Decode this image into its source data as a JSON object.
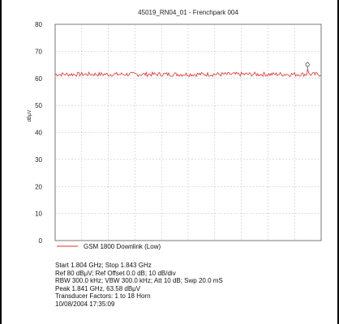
{
  "chart_data": {
    "type": "line",
    "title": "45019_RN04_01 - Frenchpark 004",
    "ylabel": "dBμV",
    "ylim": [
      0,
      80
    ],
    "yticks": [
      0,
      10,
      20,
      30,
      40,
      50,
      60,
      70,
      80
    ],
    "grid": true,
    "legend_position": "bottom",
    "series": [
      {
        "name": "GSM 1800 Downlink (Low)",
        "color": "#e03030",
        "x_start_ghz": 1.804,
        "x_stop_ghz": 1.843,
        "level_dbuv": 61.5,
        "peak": {
          "x_ghz": 1.841,
          "value": 63.58
        }
      }
    ]
  },
  "info": {
    "line1": "Start 1.804 GHz; Stop 1.843 GHz",
    "line2": "Ref 80 dBμV; Ref Offset 0.0 dB; 10 dB/div",
    "line3": "RBW 300.0 kHz; VBW 300.0 kHz; Att 10 dB; Swp 20.0 mS",
    "line4": "Peak 1.841 GHz, 63.58 dBμV",
    "line5": "Transducer Factors: 1 to 18 Horn",
    "line6": "10/08/2004 17:35:09"
  }
}
